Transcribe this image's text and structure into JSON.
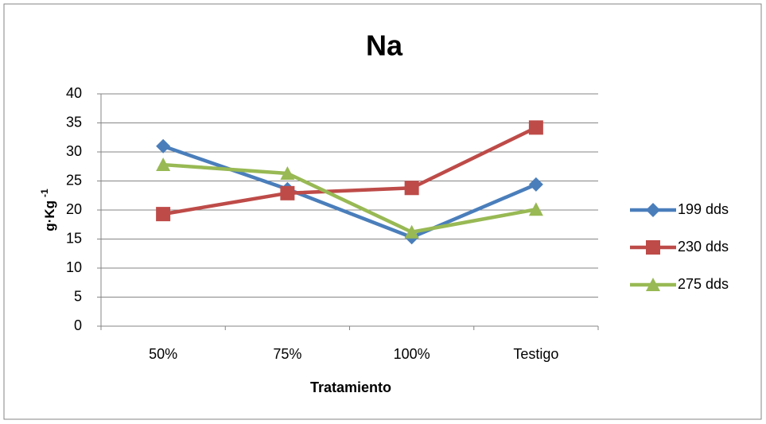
{
  "chart_data": {
    "type": "line",
    "title": "Na",
    "xlabel": "Tratamiento",
    "ylabel": "g·Kg",
    "ylabel_sup": "-1",
    "categories": [
      "50%",
      "75%",
      "100%",
      "Testigo"
    ],
    "series": [
      {
        "name": "199 dds",
        "color": "#4a7ebb",
        "marker": "diamond",
        "values": [
          31,
          23.6,
          15.3,
          24.4
        ]
      },
      {
        "name": "230 dds",
        "color": "#be4b48",
        "marker": "square",
        "values": [
          19.3,
          22.9,
          23.8,
          34.2
        ]
      },
      {
        "name": "275 dds",
        "color": "#98b954",
        "marker": "triangle",
        "values": [
          27.8,
          26.3,
          16.2,
          20.1
        ]
      }
    ],
    "ylim": [
      0,
      40
    ],
    "yticks": [
      0,
      5,
      10,
      15,
      20,
      25,
      30,
      35,
      40
    ],
    "grid": true,
    "legend": "right"
  }
}
